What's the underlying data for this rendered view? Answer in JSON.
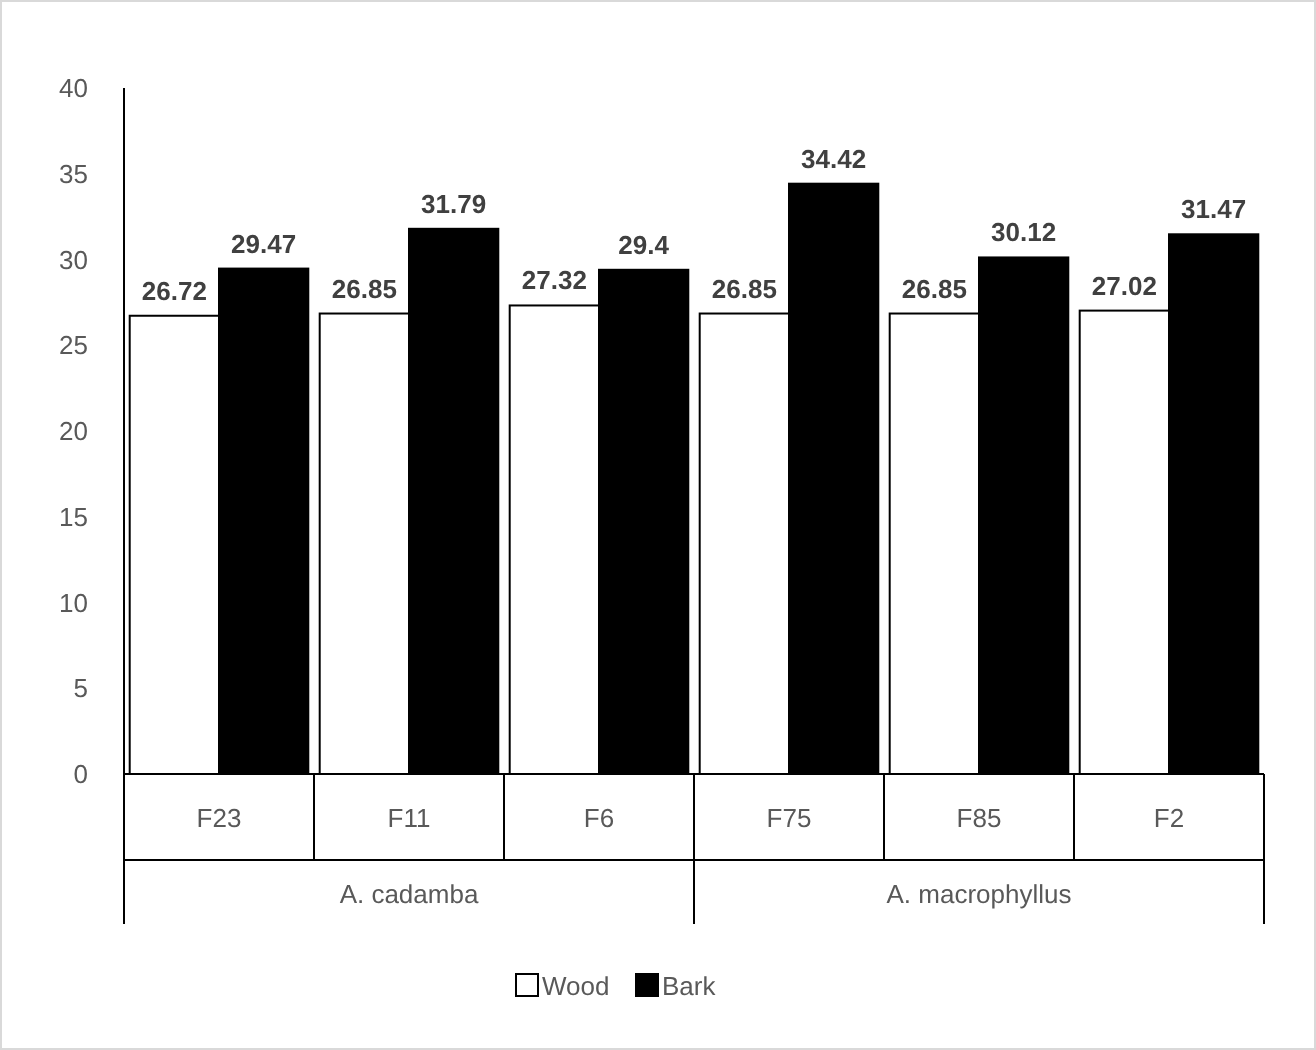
{
  "chart_data": {
    "type": "bar",
    "categories": [
      "F23",
      "F11",
      "F6",
      "F75",
      "F85",
      "F2"
    ],
    "series": [
      {
        "name": "Wood",
        "color": "#ffffff",
        "values": [
          26.72,
          26.85,
          27.32,
          26.85,
          26.85,
          27.02
        ]
      },
      {
        "name": "Bark",
        "color": "#000000",
        "values": [
          29.47,
          31.79,
          29.4,
          34.42,
          30.12,
          31.47
        ]
      }
    ],
    "ylim": [
      0,
      40
    ],
    "yticks": [
      0,
      5,
      10,
      15,
      20,
      25,
      30,
      35,
      40
    ],
    "grid": false,
    "legend": "bottom",
    "data_labels": true,
    "annotations": [
      "A. cadamba",
      "A. macrophyllus"
    ]
  }
}
